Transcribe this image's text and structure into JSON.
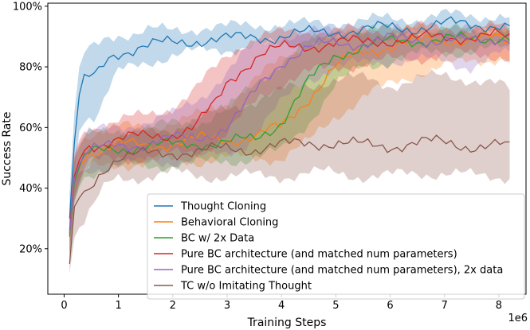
{
  "chart_data": {
    "type": "line",
    "title": "",
    "xlabel": "Training Steps",
    "ylabel": "Success Rate",
    "x_scale_label": "1e6",
    "xlim": [
      -0.3,
      8.5
    ],
    "ylim": [
      5,
      101
    ],
    "xticks": [
      0,
      1,
      2,
      3,
      4,
      5,
      6,
      7,
      8
    ],
    "yticks": [
      20,
      40,
      60,
      80,
      100
    ],
    "ytick_labels": [
      "20%",
      "40%",
      "60%",
      "80%",
      "100%"
    ],
    "grid": false,
    "legend_position": "lower-right",
    "series": [
      {
        "name": "Thought Cloning",
        "color": "#1f77b4",
        "x": [
          0.1,
          0.2,
          0.3,
          0.45,
          0.6,
          0.8,
          1.0,
          1.3,
          1.6,
          2.0,
          2.5,
          3.0,
          3.5,
          4.0,
          4.5,
          5.0,
          5.5,
          6.0,
          6.5,
          7.0,
          7.5,
          8.0,
          8.2
        ],
        "mean": [
          30,
          58,
          74,
          76,
          77,
          83,
          85,
          86,
          87,
          88,
          89,
          89,
          90,
          90,
          91,
          92,
          92,
          93,
          93,
          94,
          94,
          94,
          93
        ],
        "lower": [
          22,
          46,
          62,
          64,
          64,
          72,
          78,
          80,
          82,
          84,
          85,
          86,
          87,
          87,
          88,
          89,
          89,
          90,
          90,
          91,
          91,
          91,
          90
        ],
        "upper": [
          38,
          68,
          83,
          85,
          87,
          90,
          91,
          91,
          92,
          92,
          93,
          93,
          94,
          94,
          94,
          95,
          95,
          96,
          96,
          97,
          97,
          97,
          96
        ]
      },
      {
        "name": "Behavioral Cloning",
        "color": "#ff7f0e",
        "x": [
          0.1,
          0.2,
          0.4,
          0.7,
          1.0,
          1.5,
          2.0,
          2.5,
          3.0,
          3.5,
          4.0,
          4.5,
          5.0,
          5.5,
          6.0,
          6.5,
          7.0,
          7.5,
          8.0,
          8.2
        ],
        "mean": [
          25,
          45,
          52,
          53,
          54,
          54,
          55,
          56,
          56,
          57,
          60,
          70,
          80,
          85,
          87,
          88,
          89,
          89,
          89,
          88
        ],
        "lower": [
          18,
          38,
          46,
          47,
          48,
          48,
          49,
          49,
          50,
          50,
          50,
          55,
          64,
          70,
          74,
          78,
          80,
          82,
          83,
          82
        ],
        "upper": [
          32,
          52,
          58,
          59,
          60,
          60,
          62,
          64,
          68,
          76,
          82,
          88,
          90,
          91,
          92,
          92,
          92,
          92,
          92,
          92
        ]
      },
      {
        "name": "BC w/ 2x Data",
        "color": "#2ca02c",
        "x": [
          0.1,
          0.2,
          0.4,
          0.7,
          1.0,
          1.5,
          2.0,
          2.5,
          3.0,
          3.5,
          4.0,
          4.5,
          5.0,
          5.5,
          6.0,
          6.5,
          7.0,
          7.5,
          8.0,
          8.2
        ],
        "mean": [
          24,
          44,
          51,
          52,
          53,
          54,
          54,
          55,
          55,
          56,
          62,
          75,
          84,
          87,
          88,
          89,
          89,
          89,
          90,
          90
        ],
        "lower": [
          17,
          37,
          45,
          46,
          47,
          47,
          48,
          48,
          49,
          50,
          52,
          62,
          74,
          80,
          82,
          84,
          85,
          85,
          86,
          86
        ],
        "upper": [
          31,
          51,
          57,
          58,
          59,
          60,
          61,
          62,
          66,
          74,
          82,
          88,
          91,
          92,
          92,
          92,
          92,
          92,
          93,
          93
        ]
      },
      {
        "name": "Pure BC architecture (and matched num parameters)",
        "color": "#d62728",
        "x": [
          0.1,
          0.2,
          0.4,
          0.7,
          1.0,
          1.5,
          2.0,
          2.4,
          2.8,
          3.0,
          3.3,
          3.6,
          4.0,
          4.5,
          5.0,
          5.5,
          6.0,
          6.5,
          7.0,
          7.5,
          8.0,
          8.2
        ],
        "mean": [
          26,
          46,
          54,
          55,
          56,
          57,
          58,
          60,
          68,
          75,
          80,
          84,
          86,
          87,
          88,
          88,
          89,
          89,
          90,
          90,
          90,
          89
        ],
        "lower": [
          19,
          39,
          48,
          49,
          50,
          50,
          51,
          52,
          55,
          58,
          64,
          70,
          75,
          78,
          80,
          81,
          82,
          83,
          84,
          84,
          84,
          83
        ],
        "upper": [
          33,
          53,
          60,
          61,
          62,
          64,
          67,
          72,
          80,
          84,
          88,
          90,
          91,
          92,
          92,
          92,
          92,
          93,
          93,
          93,
          93,
          92
        ]
      },
      {
        "name": "Pure BC architecture (and matched num parameters), 2x data",
        "color": "#9467bd",
        "x": [
          0.1,
          0.2,
          0.4,
          0.7,
          1.0,
          1.5,
          2.0,
          2.5,
          3.0,
          3.3,
          3.6,
          4.0,
          4.5,
          5.0,
          5.5,
          6.0,
          6.5,
          7.0,
          7.5,
          8.0,
          8.2
        ],
        "mean": [
          25,
          45,
          52,
          53,
          54,
          55,
          56,
          57,
          60,
          66,
          74,
          82,
          86,
          88,
          88,
          89,
          89,
          89,
          88,
          90,
          90
        ],
        "lower": [
          18,
          38,
          46,
          47,
          48,
          48,
          49,
          50,
          51,
          54,
          60,
          68,
          76,
          80,
          81,
          82,
          82,
          82,
          80,
          84,
          84
        ],
        "upper": [
          32,
          52,
          58,
          59,
          60,
          62,
          64,
          70,
          78,
          84,
          88,
          90,
          91,
          92,
          92,
          92,
          92,
          92,
          92,
          92,
          92
        ]
      },
      {
        "name": "TC w/o Imitating Thought",
        "color": "#8c564b",
        "x": [
          0.1,
          0.2,
          0.4,
          0.6,
          0.8,
          1.0,
          1.5,
          2.0,
          2.5,
          3.0,
          3.5,
          4.0,
          4.5,
          5.0,
          5.5,
          6.0,
          6.5,
          7.0,
          7.5,
          8.0,
          8.2
        ],
        "mean": [
          15,
          36,
          38,
          44,
          48,
          50,
          51,
          52,
          52,
          53,
          53,
          54,
          55,
          55,
          54,
          54,
          55,
          55,
          54,
          54,
          53
        ],
        "lower": [
          12,
          25,
          30,
          36,
          41,
          43,
          44,
          45,
          44,
          44,
          44,
          44,
          45,
          45,
          44,
          44,
          45,
          45,
          44,
          44,
          44
        ],
        "upper": [
          20,
          45,
          46,
          52,
          55,
          57,
          58,
          60,
          63,
          66,
          69,
          72,
          74,
          76,
          76,
          74,
          76,
          77,
          76,
          74,
          72
        ]
      }
    ]
  }
}
